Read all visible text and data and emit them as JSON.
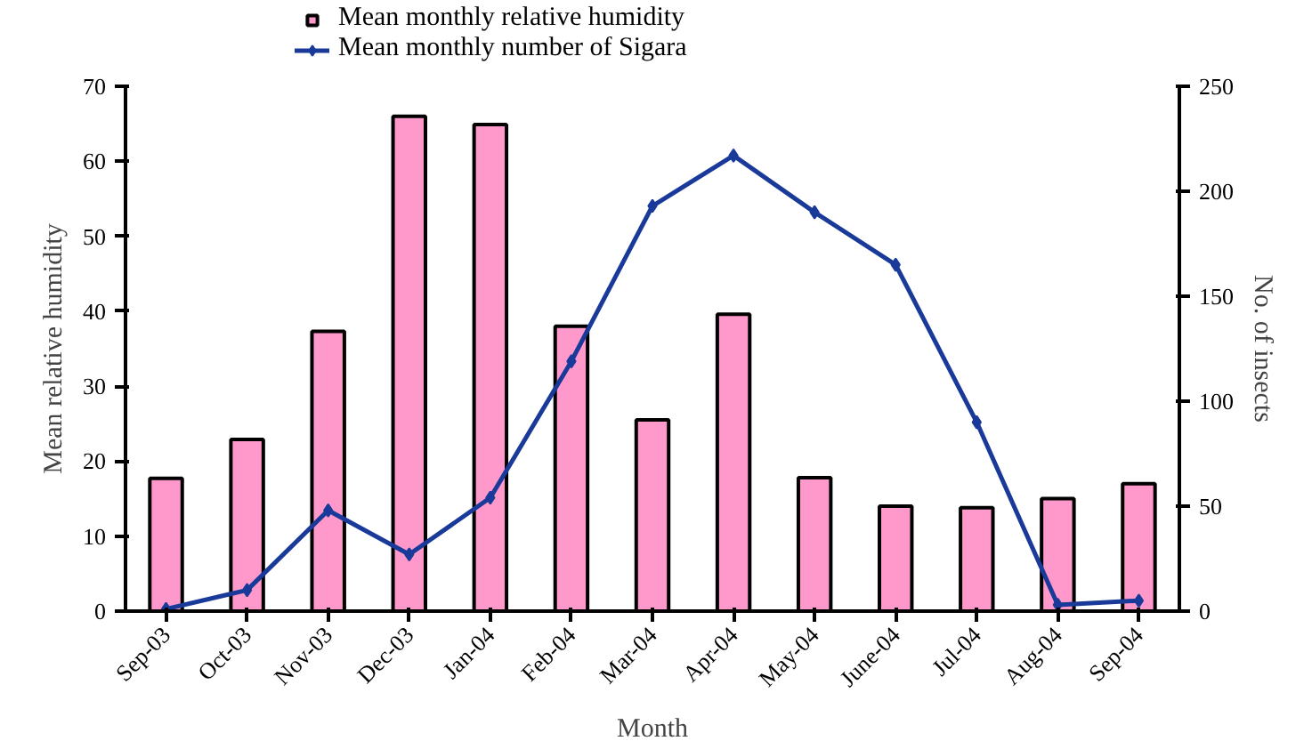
{
  "chart_data": {
    "type": "bar",
    "xlabel": "Month",
    "ylabel": "Mean relative humidity",
    "y2label": "No. of insects",
    "categories": [
      "Sep-03",
      "Oct-03",
      "Nov-03",
      "Dec-03",
      "Jan-04",
      "Feb-04",
      "Mar-04",
      "Apr-04",
      "May-04",
      "June-04",
      "Jul-04",
      "Aug-04",
      "Sep-04"
    ],
    "series": [
      {
        "name": "Mean monthly relative humidity",
        "color": "#ff99cc",
        "values": [
          17.7,
          22.9,
          37.3,
          66,
          64.9,
          38,
          25.5,
          39.6,
          17.8,
          14,
          13.8,
          15,
          17
        ]
      },
      {
        "name": "Mean monthly number of Sigara",
        "type": "line",
        "axis": "y2",
        "color": "#1a3a9a",
        "marker": "diamond",
        "values": [
          1,
          10,
          48,
          27,
          54,
          119,
          193,
          217,
          190,
          165,
          90,
          3,
          5
        ]
      }
    ],
    "ylim": [
      0,
      70
    ],
    "yticks": [
      0,
      10,
      20,
      30,
      40,
      50,
      60,
      70
    ],
    "y2lim": [
      0,
      250
    ],
    "y2ticks": [
      0,
      50,
      100,
      150,
      200,
      250
    ],
    "grid": false,
    "legend": "top"
  }
}
